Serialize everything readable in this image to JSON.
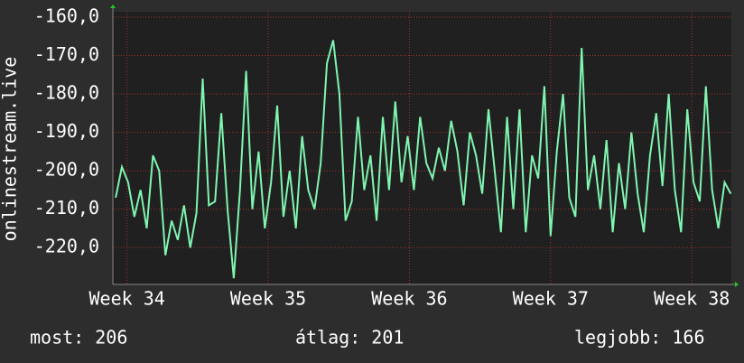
{
  "chart_data": {
    "type": "line",
    "y_label": "onlinestream.live",
    "x": [
      33.92,
      33.964,
      34.008,
      34.052,
      34.096,
      34.14,
      34.184,
      34.228,
      34.272,
      34.316,
      34.36,
      34.404,
      34.448,
      34.492,
      34.536,
      34.58,
      34.624,
      34.668,
      34.712,
      34.756,
      34.8,
      34.844,
      34.888,
      34.932,
      34.976,
      35.02,
      35.064,
      35.108,
      35.152,
      35.196,
      35.24,
      35.284,
      35.328,
      35.372,
      35.416,
      35.46,
      35.504,
      35.548,
      35.592,
      35.636,
      35.68,
      35.724,
      35.768,
      35.812,
      35.856,
      35.9,
      35.944,
      35.988,
      36.032,
      36.076,
      36.12,
      36.164,
      36.208,
      36.252,
      36.296,
      36.34,
      36.384,
      36.428,
      36.472,
      36.516,
      36.56,
      36.604,
      36.648,
      36.692,
      36.736,
      36.78,
      36.824,
      36.868,
      36.912,
      36.956,
      37.0,
      37.044,
      37.088,
      37.132,
      37.176,
      37.22,
      37.264,
      37.308,
      37.352,
      37.396,
      37.44,
      37.484,
      37.528,
      37.572,
      37.616,
      37.66,
      37.704,
      37.748,
      37.792,
      37.836,
      37.88,
      37.924,
      37.968,
      38.012,
      38.056,
      38.1,
      38.144,
      38.188,
      38.232,
      38.276
    ],
    "series": [
      {
        "color": "#7ff5b0",
        "values": [
          -207,
          -199,
          -203,
          -212,
          -205,
          -215,
          -196,
          -200,
          -222,
          -213,
          -218,
          -209,
          -220,
          -211,
          -176,
          -209,
          -208,
          -185,
          -210,
          -228,
          -205,
          -174,
          -210,
          -195,
          -215,
          -203,
          -183,
          -212,
          -200,
          -215,
          -191,
          -205,
          -210,
          -198,
          -172,
          -166,
          -180,
          -213,
          -208,
          -186,
          -205,
          -196,
          -213,
          -186,
          -205,
          -182,
          -203,
          -191,
          -205,
          -186,
          -198,
          -202,
          -194,
          -200,
          -187,
          -195,
          -209,
          -190,
          -196,
          -206,
          -184,
          -200,
          -216,
          -186,
          -210,
          -184,
          -216,
          -196,
          -202,
          -178,
          -217,
          -195,
          -180,
          -207,
          -212,
          -168,
          -205,
          -196,
          -210,
          -192,
          -216,
          -198,
          -210,
          -190,
          -206,
          -216,
          -196,
          -185,
          -204,
          -180,
          -205,
          -216,
          -184,
          -203,
          -208,
          -178,
          -205,
          -215,
          -203,
          -206
        ]
      }
    ],
    "xlim": [
      33.9,
      38.28
    ],
    "xticks": [
      {
        "value": 34,
        "label": "Week 34"
      },
      {
        "value": 35,
        "label": "Week 35"
      },
      {
        "value": 36,
        "label": "Week 36"
      },
      {
        "value": 37,
        "label": "Week 37"
      },
      {
        "value": 38,
        "label": "Week 38"
      }
    ],
    "ylim": [
      -229.6,
      -158.6
    ],
    "yticks": [
      {
        "value": -220,
        "label": "-220,0"
      },
      {
        "value": -210,
        "label": "-210,0"
      },
      {
        "value": -200,
        "label": "-200,0"
      },
      {
        "value": -190,
        "label": "-190,0"
      },
      {
        "value": -180,
        "label": "-180,0"
      },
      {
        "value": -170,
        "label": "-170,0"
      },
      {
        "value": -160,
        "label": "-160,0"
      }
    ],
    "grid": true,
    "footer": [
      "most: 206",
      "átlag: 201",
      "legjobb: 166"
    ]
  }
}
